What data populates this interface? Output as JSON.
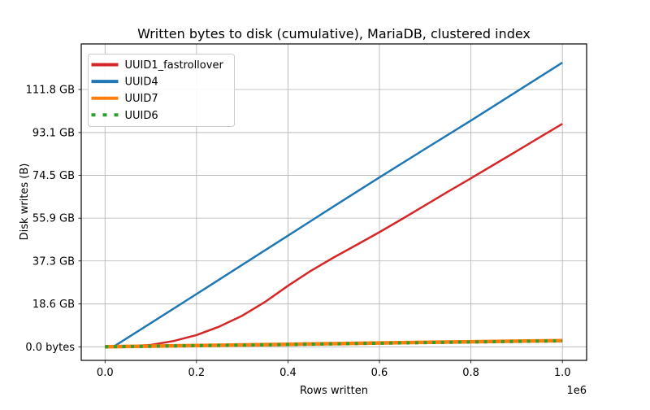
{
  "chart_data": {
    "type": "line",
    "title": "Written bytes to disk (cumulative), MariaDB, clustered index",
    "xlabel": "Rows written",
    "ylabel": "Disk writes (B)",
    "x_offset_label": "1e6",
    "xlim": [
      -0.052,
      1.053
    ],
    "ylim": [
      -5.9,
      131.6
    ],
    "grid": true,
    "x_ticks": {
      "values": [
        0.0,
        0.2,
        0.4,
        0.6,
        0.8,
        1.0
      ],
      "labels": [
        "0.0",
        "0.2",
        "0.4",
        "0.6",
        "0.8",
        "1.0"
      ]
    },
    "y_ticks": {
      "values": [
        0.0,
        18.6,
        37.3,
        55.9,
        74.5,
        93.1,
        111.8
      ],
      "labels": [
        "0.0 bytes",
        "18.6 GB",
        "37.3 GB",
        "55.9 GB",
        "74.5 GB",
        "93.1 GB",
        "111.8 GB"
      ]
    },
    "y_unit": "GB (as displayed on axis)",
    "x_unit": "1e6 rows",
    "legend": {
      "position": "upper left"
    },
    "series": [
      {
        "name": "UUID1_fastrollover",
        "color": "#d62728",
        "style": "solid",
        "width": 2.5,
        "x": [
          0,
          0.05,
          0.1,
          0.15,
          0.2,
          0.25,
          0.3,
          0.35,
          0.4,
          0.45,
          0.5,
          0.55,
          0.6,
          0.65,
          0.7,
          0.75,
          0.8,
          0.85,
          0.9,
          0.95,
          1.0
        ],
        "y": [
          0,
          0.2,
          0.8,
          2.5,
          5.1,
          8.8,
          13.5,
          19.5,
          26.5,
          33.0,
          38.8,
          44.3,
          49.8,
          55.6,
          61.5,
          67.4,
          73.2,
          79.1,
          85.0,
          91.0,
          96.9
        ]
      },
      {
        "name": "UUID4",
        "color": "#1f77b4",
        "style": "solid",
        "width": 2.5,
        "x": [
          0,
          0.02,
          0.1,
          0.2,
          0.3,
          0.4,
          0.5,
          0.6,
          0.7,
          0.8,
          0.9,
          1.0
        ],
        "y": [
          0,
          0.2,
          10.3,
          22.9,
          35.6,
          48.3,
          61.0,
          73.6,
          86.0,
          98.3,
          110.9,
          123.5
        ]
      },
      {
        "name": "UUID7",
        "color": "#ff7f0e",
        "style": "solid",
        "width": 4.5,
        "x": [
          0,
          0.2,
          0.4,
          0.6,
          0.8,
          1.0
        ],
        "y": [
          0,
          0.55,
          1.1,
          1.65,
          2.2,
          2.7
        ]
      },
      {
        "name": "UUID6",
        "color": "#2ca02c",
        "style": "dotted",
        "width": 4,
        "x": [
          0,
          0.2,
          0.4,
          0.6,
          0.8,
          1.0
        ],
        "y": [
          0,
          0.5,
          1.0,
          1.55,
          2.1,
          2.6
        ]
      }
    ]
  },
  "colors": {
    "background": "#ffffff",
    "grid": "#b0b0b0",
    "spine": "#000000",
    "legend_border": "#cccccc",
    "legend_fill": "#ffffff"
  }
}
